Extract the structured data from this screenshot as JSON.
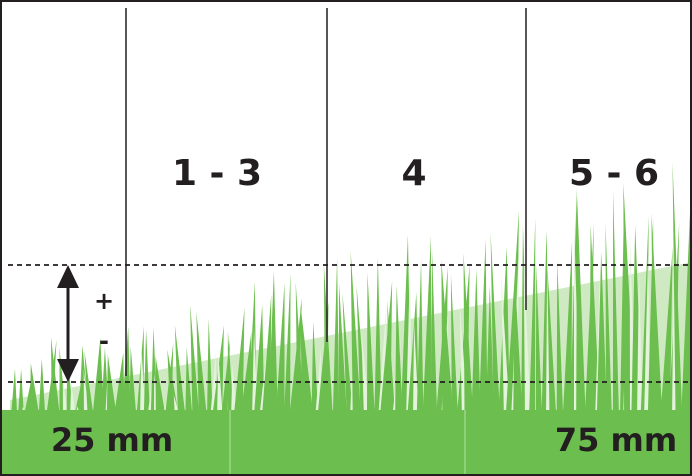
{
  "columns": [
    {
      "label": "1 - 3"
    },
    {
      "label": "4"
    },
    {
      "label": "5 - 6"
    }
  ],
  "adjust": {
    "plus": "+",
    "minus": "-"
  },
  "heights": {
    "low": "25 mm",
    "high": "75 mm"
  }
}
